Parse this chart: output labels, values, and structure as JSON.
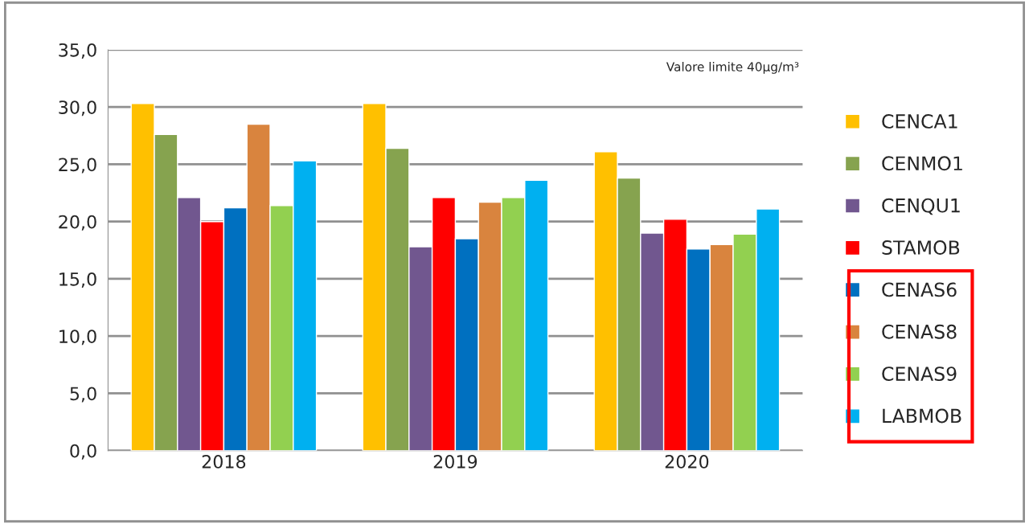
{
  "chart_data": {
    "type": "bar",
    "categories": [
      "2018",
      "2019",
      "2020"
    ],
    "series": [
      {
        "name": "CENCA1",
        "color": "#ffc000",
        "values": [
          30.3,
          30.3,
          26.1
        ]
      },
      {
        "name": "CENMO1",
        "color": "#86a34f",
        "values": [
          27.6,
          26.4,
          23.8
        ]
      },
      {
        "name": "CENQU1",
        "color": "#71578f",
        "values": [
          22.1,
          17.8,
          19.0
        ]
      },
      {
        "name": "STAMOB",
        "color": "#ff0000",
        "values": [
          20.0,
          22.1,
          20.2
        ]
      },
      {
        "name": "CENAS6",
        "color": "#0070c0",
        "values": [
          21.2,
          18.5,
          17.6
        ]
      },
      {
        "name": "CENAS8",
        "color": "#d9843e",
        "values": [
          28.5,
          21.7,
          18.0
        ]
      },
      {
        "name": "CENAS9",
        "color": "#92d050",
        "values": [
          21.4,
          22.1,
          18.9
        ]
      },
      {
        "name": "LABMOB",
        "color": "#00b0f0",
        "values": [
          25.3,
          23.6,
          21.1
        ]
      }
    ],
    "ylim": [
      0,
      35
    ],
    "yticks": [
      {
        "value": 0,
        "label": "0,0"
      },
      {
        "value": 5,
        "label": "5,0"
      },
      {
        "value": 10,
        "label": "10,0"
      },
      {
        "value": 15,
        "label": "15,0"
      },
      {
        "value": 20,
        "label": "20,0"
      },
      {
        "value": 25,
        "label": "25,0"
      },
      {
        "value": 30,
        "label": "30,0"
      },
      {
        "value": 35,
        "label": "35,0"
      }
    ],
    "grid": "y",
    "legend": "right",
    "annotations": [
      "Valore limite 40µg/m³"
    ]
  }
}
